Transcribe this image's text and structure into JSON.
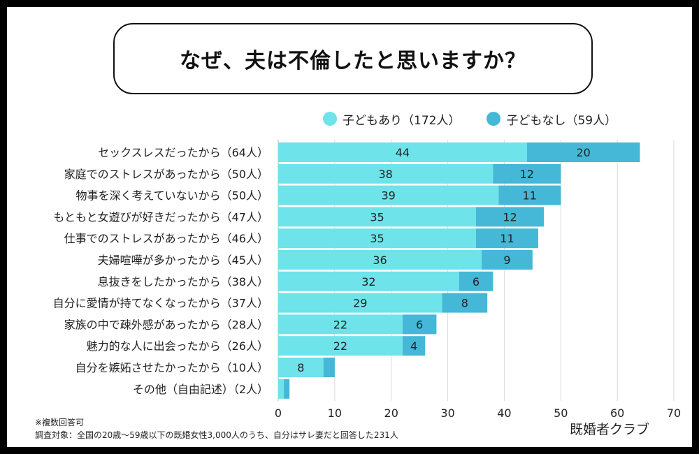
{
  "title": "なぜ、夫は不倫したと思いますか？",
  "legend": [
    {
      "label": "子どもあり（172人）",
      "color": "#6EE3EA"
    },
    {
      "label": "子どもなし（59人）",
      "color": "#44B8D6"
    }
  ],
  "notes": {
    "multiple": "※複数回答可",
    "target": "調査対象：全国の20歳〜59歳以下の既婚女性3,000人のうち、自分はサレ妻だと回答した231人"
  },
  "brand": "既婚者クラブ",
  "chart_data": {
    "type": "bar",
    "orientation": "horizontal",
    "stacked": true,
    "categories": [
      "セックスレスだったから（64人）",
      "家庭でのストレスがあったから（50人）",
      "物事を深く考えていないから（50人）",
      "もともと女遊びが好きだったから（47人）",
      "仕事でのストレスがあったから（46人）",
      "夫婦喧嘩が多かったから（45人）",
      "息抜きをしたかったから（38人）",
      "自分に愛情が持てなくなったから（37人）",
      "家族の中で疎外感があったから（28人）",
      "魅力的な人に出会ったから（26人）",
      "自分を嫉妬させたかったから（10人）",
      "その他（自由記述）（2人）"
    ],
    "series": [
      {
        "name": "子どもあり（172人）",
        "color": "#6EE3EA",
        "values": [
          44,
          38,
          39,
          35,
          35,
          36,
          32,
          29,
          22,
          22,
          8,
          1
        ],
        "labels": [
          "44",
          "38",
          "39",
          "35",
          "35",
          "36",
          "32",
          "29",
          "22",
          "22",
          "8",
          ""
        ]
      },
      {
        "name": "子どもなし（59人）",
        "color": "#44B8D6",
        "values": [
          20,
          12,
          11,
          12,
          11,
          9,
          6,
          8,
          6,
          4,
          2,
          1
        ],
        "labels": [
          "20",
          "12",
          "11",
          "12",
          "11",
          "9",
          "6",
          "8",
          "6",
          "4",
          "",
          ""
        ]
      }
    ],
    "xlim": [
      0,
      70
    ],
    "xticks": [
      0,
      10,
      20,
      30,
      40,
      50,
      60,
      70
    ],
    "grid": true
  }
}
